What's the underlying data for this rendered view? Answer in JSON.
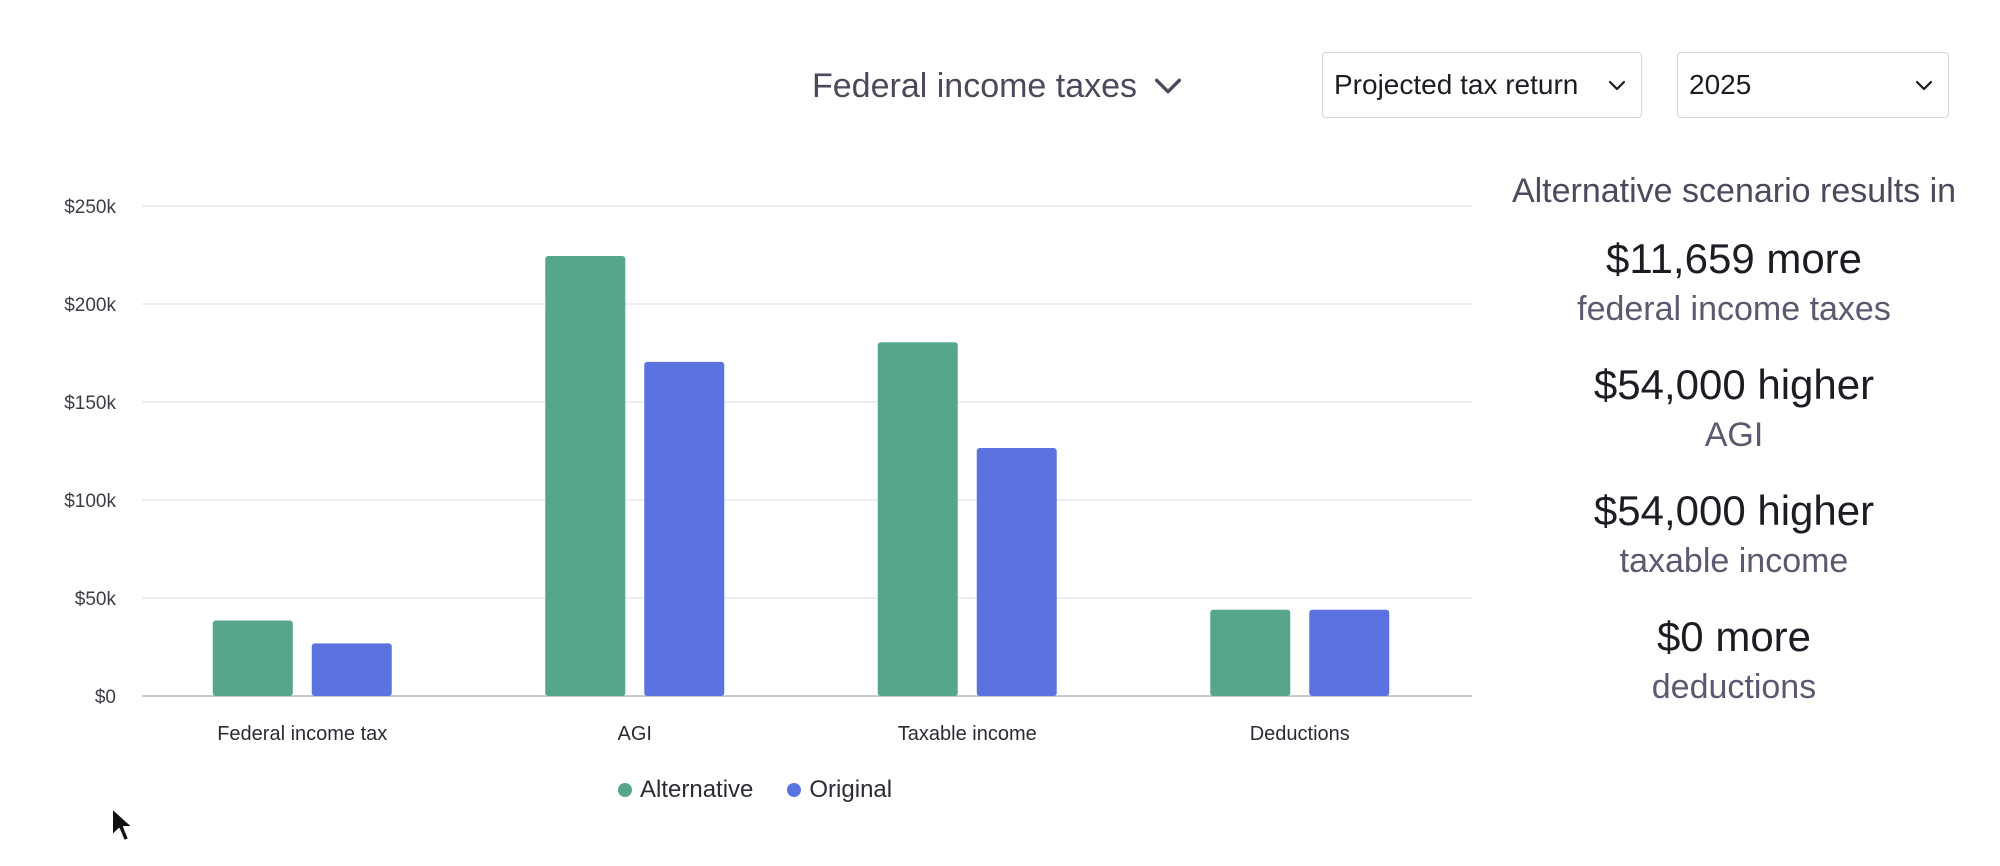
{
  "header": {
    "metric_label": "Federal income taxes",
    "return_type": "Projected tax return",
    "year": "2025"
  },
  "colors": {
    "alternative": "#55a68b",
    "original": "#5b73e1",
    "grid": "#e9e9ee",
    "axis": "#c9c9d0"
  },
  "legend": [
    {
      "label": "Alternative",
      "color": "#55a68b"
    },
    {
      "label": "Original",
      "color": "#5b73e1"
    }
  ],
  "chart_data": {
    "type": "bar",
    "categories": [
      "Federal income tax",
      "AGI",
      "Taxable income",
      "Deductions"
    ],
    "series": [
      {
        "name": "Alternative",
        "values": [
          38500,
          224500,
          180500,
          44000
        ]
      },
      {
        "name": "Original",
        "values": [
          26841,
          170500,
          126500,
          44000
        ]
      }
    ],
    "ylim": [
      0,
      250000
    ],
    "yticks": [
      0,
      50000,
      100000,
      150000,
      200000,
      250000
    ],
    "ytick_labels": [
      "$0",
      "$50k",
      "$100k",
      "$150k",
      "$200k",
      "$250k"
    ],
    "grid": true,
    "legend_position": "bottom"
  },
  "summary": {
    "heading": "Alternative scenario results in",
    "items": [
      {
        "value": "$11,659 more",
        "label": "federal income taxes"
      },
      {
        "value": "$54,000 higher",
        "label": "AGI"
      },
      {
        "value": "$54,000 higher",
        "label": "taxable income"
      },
      {
        "value": "$0 more",
        "label": "deductions"
      }
    ]
  }
}
